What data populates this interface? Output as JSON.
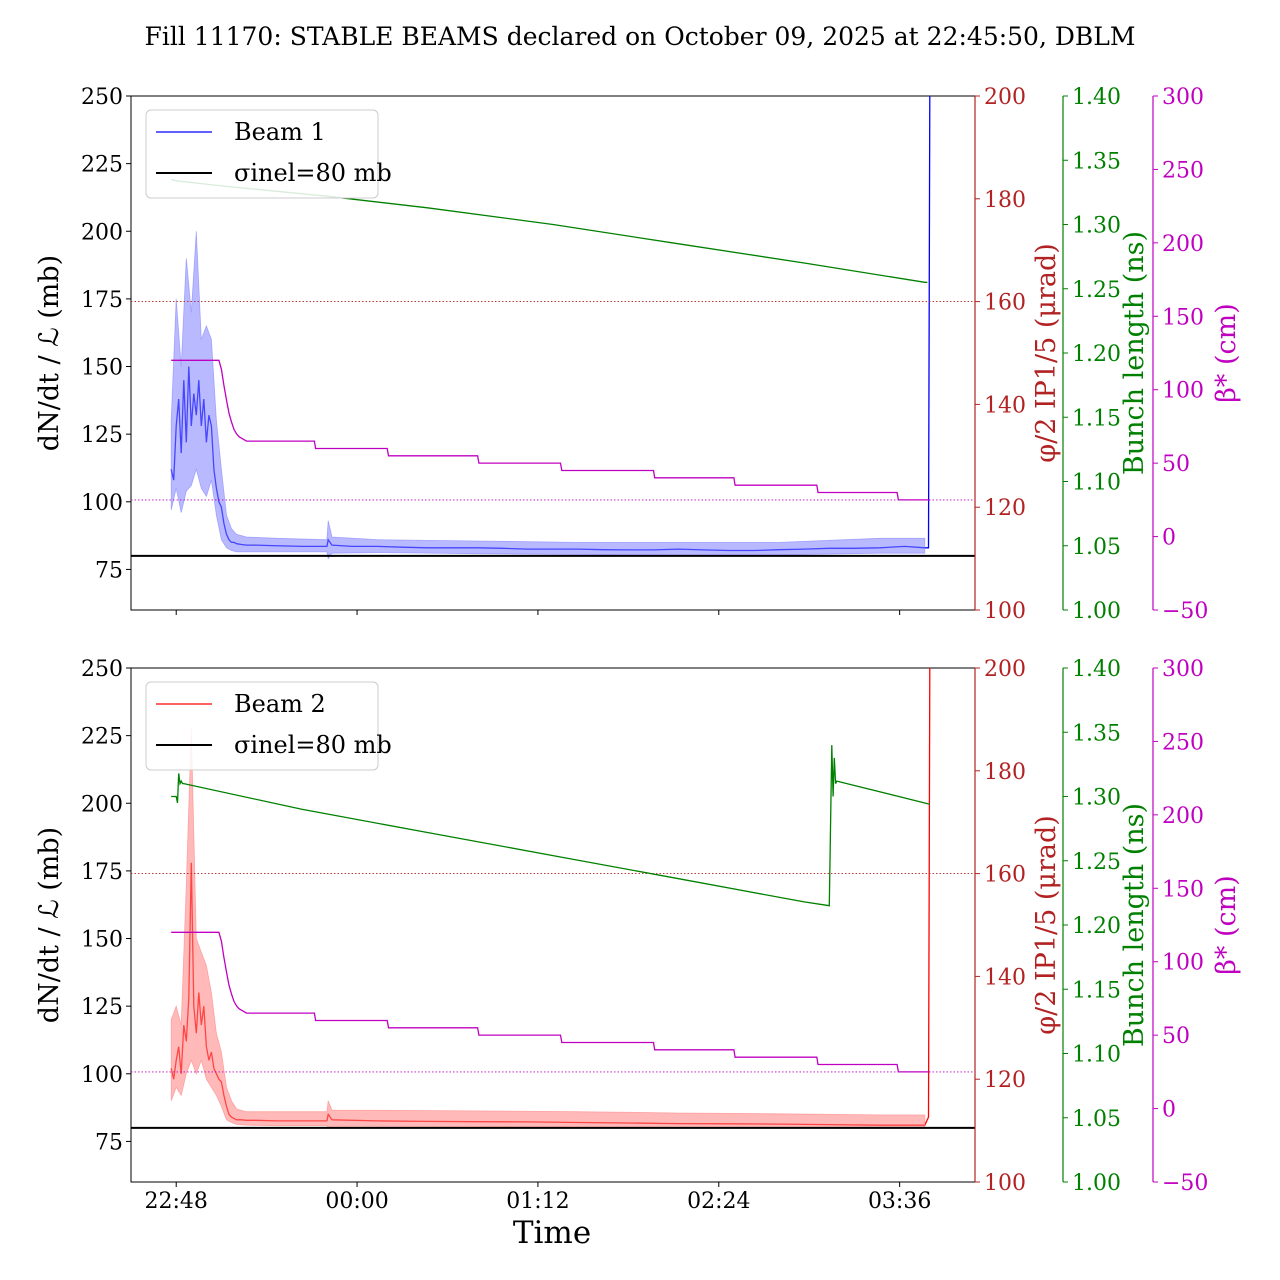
{
  "title": "Fill 11170: STABLE BEAMS declared on October 09, 2025 at 22:45:50, DBLM",
  "x_axis": {
    "label": "Time",
    "tick_labels": [
      "22:48",
      "00:00",
      "01:12",
      "02:24",
      "03:36"
    ]
  },
  "colors": {
    "beam1": "#0000ff",
    "beam1_band": "#8080ff",
    "beam2": "#ff0000",
    "beam2_band": "#ff8080",
    "reference": "#000000",
    "crossing_angle": "#b22222",
    "bunch_length": "#008000",
    "beta_star": "#c000c0"
  },
  "chart_data": [
    {
      "type": "line",
      "panel": "top",
      "x_unit": "minutes since 22:48",
      "xlim": [
        -18,
        318
      ],
      "x_ticks": [
        0,
        72,
        144,
        216,
        288
      ],
      "axes": {
        "left": {
          "label": "dN/dt / ℒ (mb)",
          "ylim": [
            60,
            250
          ],
          "ticks": [
            "75",
            "100",
            "125",
            "150",
            "175",
            "200",
            "225",
            "250"
          ],
          "color": "#000000"
        },
        "right1": {
          "label": "φ/2 IP1/5 (μrad)",
          "ylim": [
            100,
            200
          ],
          "ticks": [
            "100",
            "120",
            "140",
            "160",
            "180",
            "200"
          ],
          "color": "#b22222"
        },
        "right2": {
          "label": "Bunch length (ns)",
          "ylim": [
            1.0,
            1.4
          ],
          "ticks": [
            "1.00",
            "1.05",
            "1.10",
            "1.15",
            "1.20",
            "1.25",
            "1.30",
            "1.35",
            "1.40"
          ],
          "color": "#008000"
        },
        "right3": {
          "label": "β* (cm)",
          "ylim": [
            -50,
            300
          ],
          "ticks": [
            "−50",
            "0",
            "50",
            "100",
            "150",
            "200",
            "250",
            "300"
          ],
          "color": "#c000c0"
        }
      },
      "legend": {
        "position": "upper-left",
        "entries": [
          "Beam 1",
          "σinel=80 mb"
        ]
      },
      "series": [
        {
          "name": "Beam 1",
          "axis": "left",
          "color": "#0000ff",
          "x": [
            -2,
            -1,
            0,
            1,
            2,
            3,
            4,
            5,
            6,
            7,
            8,
            9,
            10,
            11,
            12,
            13,
            14,
            15,
            16,
            17,
            18,
            19,
            20,
            21,
            22,
            23,
            24,
            26,
            28,
            32,
            38,
            50,
            60,
            60.5,
            62,
            70,
            80,
            90,
            100,
            110,
            120,
            130,
            140,
            150,
            160,
            170,
            180,
            190,
            200,
            210,
            220,
            230,
            240,
            250,
            260,
            270,
            280,
            290,
            298,
            299.5,
            300
          ],
          "y": [
            112,
            108,
            128,
            138,
            118,
            145,
            122,
            150,
            128,
            140,
            132,
            145,
            128,
            138,
            122,
            132,
            128,
            112,
            105,
            100,
            98,
            92,
            88,
            86,
            85,
            85,
            84.5,
            84.2,
            84,
            84,
            83.8,
            83.5,
            83.5,
            86,
            84,
            83.5,
            83.5,
            83.2,
            83,
            83,
            83,
            82.8,
            82.5,
            82.5,
            82.5,
            82.3,
            82.2,
            82.2,
            82.5,
            82.2,
            82,
            82,
            82.3,
            82.5,
            82.8,
            82.8,
            83,
            83.5,
            83,
            83,
            250
          ]
        },
        {
          "name": "Beam 1 uncertainty band",
          "axis": "left",
          "color": "#8080ff",
          "band": true,
          "x": [
            -2,
            0,
            2,
            4,
            6,
            8,
            10,
            12,
            14,
            16,
            18,
            20,
            22,
            24,
            28,
            40,
            60,
            60.5,
            62,
            80,
            120,
            160,
            200,
            240,
            280,
            298
          ],
          "y_low": [
            97,
            105,
            96,
            104,
            106,
            112,
            105,
            102,
            108,
            95,
            86,
            83,
            82,
            81.5,
            81.5,
            81.5,
            81.5,
            79,
            81,
            81.2,
            80.8,
            80.5,
            80.3,
            80.4,
            81,
            81
          ],
          "y_high": [
            130,
            175,
            150,
            190,
            170,
            200,
            160,
            165,
            160,
            130,
            112,
            95,
            90,
            88,
            87,
            86.5,
            86,
            93,
            87,
            86,
            85.5,
            85,
            85,
            85,
            86.5,
            86.5
          ]
        },
        {
          "name": "σinel=80 mb",
          "axis": "left",
          "color": "#000000",
          "x": [
            -18,
            318
          ],
          "y": [
            80,
            80
          ]
        },
        {
          "name": "φ/2 IP1/5",
          "axis": "right1",
          "color": "#b22222",
          "style": "dotted",
          "x": [
            -18,
            318
          ],
          "y": [
            160,
            160
          ]
        },
        {
          "name": "Bunch length",
          "axis": "right2",
          "color": "#008000",
          "x": [
            -2,
            0,
            18,
            60,
            100,
            150,
            200,
            250,
            298,
            299
          ],
          "y": [
            1.335,
            1.334,
            1.33,
            1.322,
            1.313,
            1.3,
            1.285,
            1.27,
            1.255,
            1.255
          ]
        },
        {
          "name": "β*",
          "axis": "right3",
          "color": "#c000c0",
          "x": [
            -2,
            17,
            18,
            19,
            20,
            21,
            22,
            23,
            24,
            25,
            26,
            28,
            55,
            55.5,
            84,
            84.5,
            120,
            120.5,
            153,
            153.5,
            190,
            190.5,
            222,
            222.5,
            255,
            255.5,
            287,
            287.5,
            300
          ],
          "y": [
            120,
            120,
            114,
            103,
            93,
            84,
            78,
            73,
            70,
            68,
            67,
            65,
            65,
            60,
            60,
            55,
            55,
            50,
            50,
            45,
            45,
            40,
            40,
            35,
            35,
            30,
            30,
            25,
            25
          ]
        },
        {
          "name": "β* reference",
          "axis": "right3",
          "color": "#c000c0",
          "style": "dotted",
          "x": [
            -18,
            318
          ],
          "y": [
            25,
            25
          ]
        }
      ]
    },
    {
      "type": "line",
      "panel": "bottom",
      "x_unit": "minutes since 22:48",
      "xlim": [
        -18,
        318
      ],
      "x_ticks": [
        0,
        72,
        144,
        216,
        288
      ],
      "axes": {
        "left": {
          "label": "dN/dt / ℒ (mb)",
          "ylim": [
            60,
            250
          ],
          "ticks": [
            "75",
            "100",
            "125",
            "150",
            "175",
            "200",
            "225",
            "250"
          ],
          "color": "#000000"
        },
        "right1": {
          "label": "φ/2 IP1/5 (μrad)",
          "ylim": [
            100,
            200
          ],
          "ticks": [
            "100",
            "120",
            "140",
            "160",
            "180",
            "200"
          ],
          "color": "#b22222"
        },
        "right2": {
          "label": "Bunch length (ns)",
          "ylim": [
            1.0,
            1.4
          ],
          "ticks": [
            "1.00",
            "1.05",
            "1.10",
            "1.15",
            "1.20",
            "1.25",
            "1.30",
            "1.35",
            "1.40"
          ],
          "color": "#008000"
        },
        "right3": {
          "label": "β* (cm)",
          "ylim": [
            -50,
            300
          ],
          "ticks": [
            "−50",
            "0",
            "50",
            "100",
            "150",
            "200",
            "250",
            "300"
          ],
          "color": "#c000c0"
        }
      },
      "legend": {
        "position": "upper-left",
        "entries": [
          "Beam 2",
          "σinel=80 mb"
        ]
      },
      "series": [
        {
          "name": "Beam 2",
          "axis": "left",
          "color": "#ff0000",
          "x": [
            -2,
            -1,
            0,
            1,
            2,
            3,
            4,
            5,
            6,
            7,
            8,
            9,
            10,
            11,
            12,
            13,
            14,
            15,
            16,
            17,
            18,
            19,
            20,
            21,
            22,
            23,
            24,
            26,
            28,
            32,
            40,
            55,
            60,
            60.5,
            62,
            80,
            100,
            120,
            140,
            160,
            180,
            200,
            220,
            240,
            260,
            280,
            298,
            299.5,
            300
          ],
          "y": [
            102,
            98,
            105,
            110,
            100,
            118,
            112,
            128,
            178,
            125,
            115,
            130,
            118,
            125,
            110,
            105,
            108,
            102,
            100,
            98,
            97,
            92,
            88,
            85,
            84,
            83.5,
            83,
            83,
            82.8,
            82.8,
            82.6,
            82.6,
            82.6,
            85,
            83,
            82.6,
            82.4,
            82.3,
            82.2,
            82,
            81.8,
            81.6,
            81.5,
            81.4,
            81.2,
            81,
            81,
            84,
            250
          ]
        },
        {
          "name": "Beam 2 uncertainty band",
          "axis": "left",
          "color": "#ff8080",
          "band": true,
          "x": [
            -2,
            0,
            2,
            4,
            6,
            8,
            10,
            12,
            14,
            16,
            18,
            20,
            22,
            24,
            28,
            40,
            60,
            60.5,
            62,
            80,
            120,
            160,
            200,
            240,
            280,
            298
          ],
          "y_low": [
            90,
            95,
            92,
            100,
            105,
            100,
            105,
            98,
            95,
            92,
            88,
            83,
            82,
            81.3,
            81,
            80.8,
            80.8,
            80,
            80.6,
            80.6,
            80.5,
            80.3,
            80.2,
            80,
            79.8,
            79.8
          ],
          "y_high": [
            120,
            125,
            118,
            170,
            228,
            150,
            145,
            140,
            130,
            115,
            108,
            95,
            90,
            87,
            86,
            86,
            86,
            90,
            86.5,
            86.5,
            86.3,
            86,
            85.5,
            85.2,
            84.8,
            84.8
          ]
        },
        {
          "name": "σinel=80 mb",
          "axis": "left",
          "color": "#000000",
          "x": [
            -18,
            318
          ],
          "y": [
            80,
            80
          ]
        },
        {
          "name": "φ/2 IP1/5",
          "axis": "right1",
          "color": "#b22222",
          "style": "dotted",
          "x": [
            -18,
            318
          ],
          "y": [
            160,
            160
          ]
        },
        {
          "name": "Bunch length",
          "axis": "right2",
          "color": "#008000",
          "x": [
            -2,
            0,
            0.5,
            1,
            1.5,
            2,
            2.5,
            3,
            50,
            100,
            150,
            200,
            250,
            260,
            260.5,
            261,
            261.5,
            262,
            262.5,
            263,
            300
          ],
          "y": [
            1.3,
            1.3,
            1.295,
            1.318,
            1.31,
            1.312,
            1.31,
            1.31,
            1.29,
            1.272,
            1.254,
            1.236,
            1.218,
            1.215,
            1.28,
            1.34,
            1.3,
            1.33,
            1.31,
            1.312,
            1.294
          ]
        },
        {
          "name": "β*",
          "axis": "right3",
          "color": "#c000c0",
          "x": [
            -2,
            17,
            18,
            19,
            20,
            21,
            22,
            23,
            24,
            25,
            26,
            28,
            55,
            55.5,
            84,
            84.5,
            120,
            120.5,
            153,
            153.5,
            190,
            190.5,
            222,
            222.5,
            255,
            255.5,
            287,
            287.5,
            300
          ],
          "y": [
            120,
            120,
            114,
            103,
            93,
            84,
            78,
            73,
            70,
            68,
            67,
            65,
            65,
            60,
            60,
            55,
            55,
            50,
            50,
            45,
            45,
            40,
            40,
            35,
            35,
            30,
            30,
            25,
            25
          ]
        },
        {
          "name": "β* reference",
          "axis": "right3",
          "color": "#c000c0",
          "style": "dotted",
          "x": [
            -18,
            318
          ],
          "y": [
            25,
            25
          ]
        }
      ]
    }
  ]
}
